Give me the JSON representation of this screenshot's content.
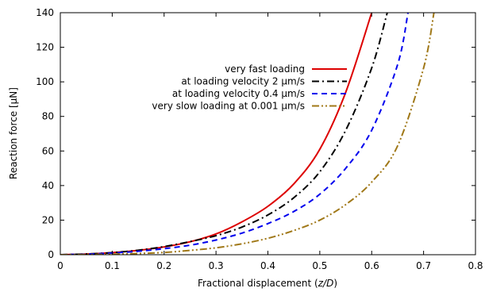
{
  "chart_data": {
    "type": "line",
    "xlabel_main": "Fractional displacement (",
    "xlabel_var": "z/D",
    "xlabel_end": ")",
    "ylabel": "Reaction force [μN]",
    "xlim": [
      0,
      0.8
    ],
    "ylim": [
      0,
      140
    ],
    "x_ticks": [
      "0",
      "0.1",
      "0.2",
      "0.3",
      "0.4",
      "0.5",
      "0.6",
      "0.7",
      "0.8"
    ],
    "y_ticks": [
      "0",
      "20",
      "40",
      "60",
      "80",
      "100",
      "120",
      "140"
    ],
    "grid": false,
    "legend_position": "top-right",
    "series": [
      {
        "name": "very fast loading",
        "color": "#dd0000",
        "dash": "solid",
        "x": [
          0,
          0.05,
          0.1,
          0.15,
          0.2,
          0.25,
          0.3,
          0.35,
          0.4,
          0.45,
          0.5,
          0.55,
          0.6
        ],
        "y": [
          0,
          0.4,
          1.2,
          2.5,
          4.5,
          7.5,
          12,
          19,
          28,
          41,
          61,
          94,
          140
        ]
      },
      {
        "name": "at loading velocity 2 μm/s",
        "color": "#000000",
        "dash": "dash-dot",
        "x": [
          0,
          0.05,
          0.1,
          0.15,
          0.2,
          0.25,
          0.3,
          0.35,
          0.4,
          0.45,
          0.5,
          0.55,
          0.6,
          0.63
        ],
        "y": [
          0,
          0.4,
          1.2,
          2.6,
          4.7,
          7.6,
          11,
          16,
          23,
          33,
          48,
          72,
          108,
          140
        ]
      },
      {
        "name": "at loading velocity 0.4 μm/s",
        "color": "#0000ee",
        "dash": "dashed",
        "x": [
          0,
          0.05,
          0.1,
          0.15,
          0.2,
          0.25,
          0.3,
          0.35,
          0.4,
          0.45,
          0.5,
          0.55,
          0.6,
          0.65,
          0.67
        ],
        "y": [
          0,
          0.3,
          1,
          2,
          3.5,
          5.5,
          8.5,
          12.5,
          18,
          25,
          35,
          50,
          72,
          110,
          140
        ]
      },
      {
        "name": "very slow loading at 0.001 μm/s",
        "color": "#a07818",
        "dash": "dash-dot-dot",
        "x": [
          0,
          0.05,
          0.1,
          0.15,
          0.2,
          0.25,
          0.3,
          0.35,
          0.4,
          0.45,
          0.5,
          0.55,
          0.6,
          0.65,
          0.7,
          0.72
        ],
        "y": [
          0,
          0.1,
          0.3,
          0.7,
          1.3,
          2.5,
          4,
          6.3,
          9.5,
          14,
          20,
          29,
          42,
          63,
          108,
          140
        ]
      }
    ]
  }
}
